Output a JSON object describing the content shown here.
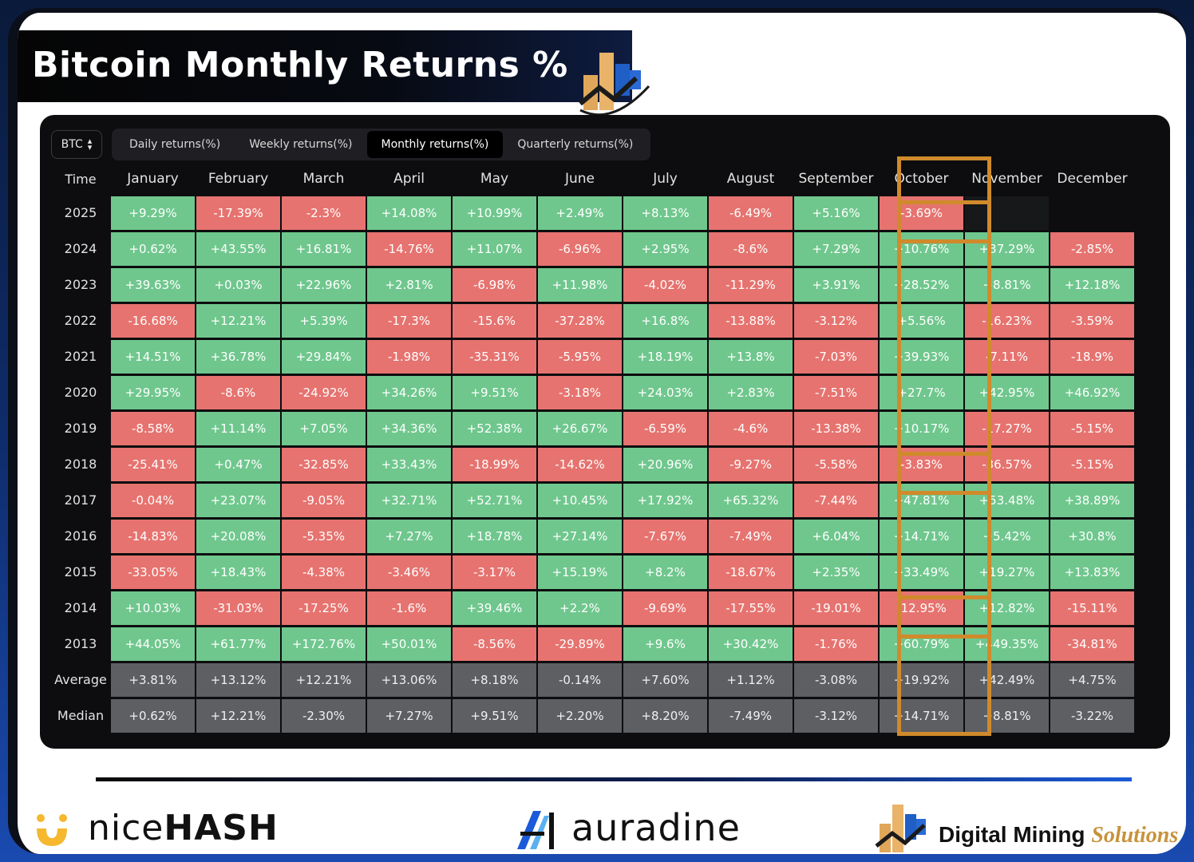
{
  "title": "Bitcoin Monthly Returns %",
  "asset_select": {
    "value": "BTC",
    "icon": "chevron-updown-icon"
  },
  "tabs": [
    {
      "label": "Daily returns(%)",
      "active": false
    },
    {
      "label": "Weekly returns(%)",
      "active": false
    },
    {
      "label": "Monthly returns(%)",
      "active": true
    },
    {
      "label": "Quarterly returns(%)",
      "active": false
    }
  ],
  "headers": [
    "Time",
    "January",
    "February",
    "March",
    "April",
    "May",
    "June",
    "July",
    "August",
    "September",
    "October",
    "November",
    "December"
  ],
  "rows": [
    {
      "label": "2025",
      "values": [
        "+9.29%",
        "-17.39%",
        "-2.3%",
        "+14.08%",
        "+10.99%",
        "+2.49%",
        "+8.13%",
        "-6.49%",
        "+5.16%",
        "-3.69%",
        "",
        ""
      ]
    },
    {
      "label": "2024",
      "values": [
        "+0.62%",
        "+43.55%",
        "+16.81%",
        "-14.76%",
        "+11.07%",
        "-6.96%",
        "+2.95%",
        "-8.6%",
        "+7.29%",
        "+10.76%",
        "+37.29%",
        "-2.85%"
      ]
    },
    {
      "label": "2023",
      "values": [
        "+39.63%",
        "+0.03%",
        "+22.96%",
        "+2.81%",
        "-6.98%",
        "+11.98%",
        "-4.02%",
        "-11.29%",
        "+3.91%",
        "+28.52%",
        "+8.81%",
        "+12.18%"
      ]
    },
    {
      "label": "2022",
      "values": [
        "-16.68%",
        "+12.21%",
        "+5.39%",
        "-17.3%",
        "-15.6%",
        "-37.28%",
        "+16.8%",
        "-13.88%",
        "-3.12%",
        "+5.56%",
        "-16.23%",
        "-3.59%"
      ]
    },
    {
      "label": "2021",
      "values": [
        "+14.51%",
        "+36.78%",
        "+29.84%",
        "-1.98%",
        "-35.31%",
        "-5.95%",
        "+18.19%",
        "+13.8%",
        "-7.03%",
        "+39.93%",
        "-7.11%",
        "-18.9%"
      ]
    },
    {
      "label": "2020",
      "values": [
        "+29.95%",
        "-8.6%",
        "-24.92%",
        "+34.26%",
        "+9.51%",
        "-3.18%",
        "+24.03%",
        "+2.83%",
        "-7.51%",
        "+27.7%",
        "+42.95%",
        "+46.92%"
      ]
    },
    {
      "label": "2019",
      "values": [
        "-8.58%",
        "+11.14%",
        "+7.05%",
        "+34.36%",
        "+52.38%",
        "+26.67%",
        "-6.59%",
        "-4.6%",
        "-13.38%",
        "+10.17%",
        "-17.27%",
        "-5.15%"
      ]
    },
    {
      "label": "2018",
      "values": [
        "-25.41%",
        "+0.47%",
        "-32.85%",
        "+33.43%",
        "-18.99%",
        "-14.62%",
        "+20.96%",
        "-9.27%",
        "-5.58%",
        "-3.83%",
        "-36.57%",
        "-5.15%"
      ]
    },
    {
      "label": "2017",
      "values": [
        "-0.04%",
        "+23.07%",
        "-9.05%",
        "+32.71%",
        "+52.71%",
        "+10.45%",
        "+17.92%",
        "+65.32%",
        "-7.44%",
        "+47.81%",
        "+53.48%",
        "+38.89%"
      ]
    },
    {
      "label": "2016",
      "values": [
        "-14.83%",
        "+20.08%",
        "-5.35%",
        "+7.27%",
        "+18.78%",
        "+27.14%",
        "-7.67%",
        "-7.49%",
        "+6.04%",
        "+14.71%",
        "+5.42%",
        "+30.8%"
      ]
    },
    {
      "label": "2015",
      "values": [
        "-33.05%",
        "+18.43%",
        "-4.38%",
        "-3.46%",
        "-3.17%",
        "+15.19%",
        "+8.2%",
        "-18.67%",
        "+2.35%",
        "+33.49%",
        "+19.27%",
        "+13.83%"
      ]
    },
    {
      "label": "2014",
      "values": [
        "+10.03%",
        "-31.03%",
        "-17.25%",
        "-1.6%",
        "+39.46%",
        "+2.2%",
        "-9.69%",
        "-17.55%",
        "-19.01%",
        "-12.95%",
        "+12.82%",
        "-15.11%"
      ]
    },
    {
      "label": "2013",
      "values": [
        "+44.05%",
        "+61.77%",
        "+172.76%",
        "+50.01%",
        "-8.56%",
        "-29.89%",
        "+9.6%",
        "+30.42%",
        "-1.76%",
        "+60.79%",
        "+449.35%",
        "-34.81%"
      ]
    }
  ],
  "summary_rows": [
    {
      "label": "Average",
      "values": [
        "+3.81%",
        "+13.12%",
        "+12.21%",
        "+13.06%",
        "+8.18%",
        "-0.14%",
        "+7.60%",
        "+1.12%",
        "-3.08%",
        "+19.92%",
        "+42.49%",
        "+4.75%"
      ]
    },
    {
      "label": "Median",
      "values": [
        "+0.62%",
        "+12.21%",
        "-2.30%",
        "+7.27%",
        "+9.51%",
        "+2.20%",
        "+8.20%",
        "-7.49%",
        "-3.12%",
        "+14.71%",
        "+8.81%",
        "-3.22%"
      ]
    }
  ],
  "highlighted_rows": [
    "2025",
    "2018",
    "2014"
  ],
  "colors": {
    "positive": "#6fc78d",
    "negative": "#e6736f",
    "summary": "#5d5f63",
    "highlight": "#d08a2c"
  },
  "footer": {
    "nicehash": {
      "light": "nice",
      "bold": "HASH"
    },
    "auradine": "auradine",
    "digital_mining": {
      "main": "Digital Mining ",
      "accent": "Solutions"
    }
  }
}
